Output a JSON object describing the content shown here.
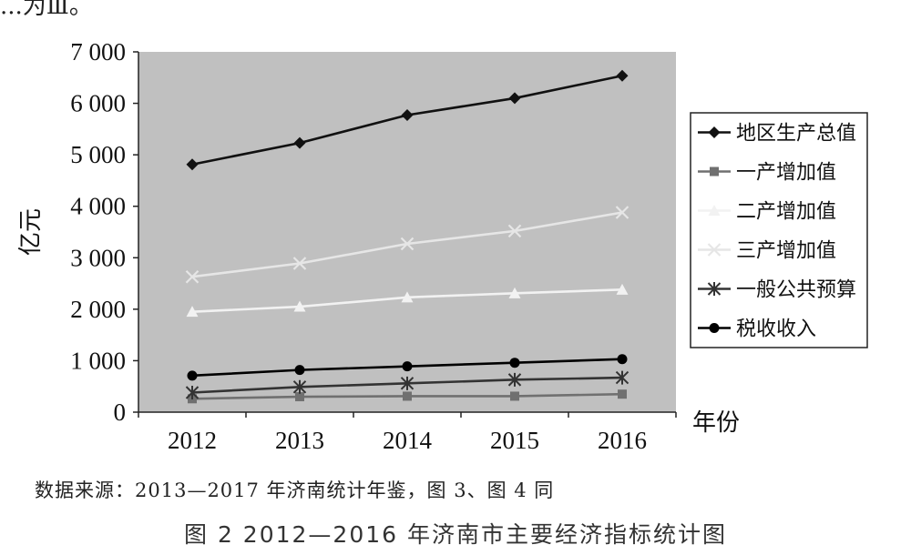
{
  "top_fragment": "...为Ⅲ。",
  "source_note": "数据来源：2013—2017 年济南统计年鉴，图 3、图 4 同",
  "figure_caption": "图 2 2012—2016 年济南市主要经济指标统计图",
  "colors": {
    "plot_bg": "#c0c0c0",
    "gdp": "#111111",
    "primary": "#707070",
    "secondary": "#f2f2f2",
    "tertiary": "#e6e6e6",
    "budget": "#333333",
    "tax": "#000000"
  },
  "chart_data": {
    "type": "line",
    "title": "",
    "xlabel": "年份",
    "ylabel": "亿元",
    "ylim": [
      0,
      7000
    ],
    "grid": false,
    "legend_position": "right",
    "x": [
      "2012",
      "2013",
      "2014",
      "2015",
      "2016"
    ],
    "y_ticks": [
      0,
      1000,
      2000,
      3000,
      4000,
      5000,
      6000,
      7000
    ],
    "y_tick_labels": [
      "0",
      "1 000",
      "2 000",
      "3 000",
      "4 000",
      "5 000",
      "6 000",
      "7 000"
    ],
    "series": [
      {
        "name": "地区生产总值",
        "marker": "diamond",
        "color": "#111111",
        "values": [
          4813,
          5230,
          5771,
          6100,
          6536
        ]
      },
      {
        "name": "一产增加值",
        "marker": "square",
        "color": "#707070",
        "values": [
          260,
          300,
          310,
          310,
          350
        ]
      },
      {
        "name": "二产增加值",
        "marker": "triangle",
        "color": "#f2f2f2",
        "values": [
          1950,
          2050,
          2230,
          2310,
          2380
        ]
      },
      {
        "name": "三产增加值",
        "marker": "x",
        "color": "#e6e6e6",
        "values": [
          2630,
          2890,
          3270,
          3520,
          3880
        ]
      },
      {
        "name": "一般公共预算",
        "marker": "asterisk",
        "color": "#333333",
        "values": [
          380,
          490,
          560,
          630,
          670
        ]
      },
      {
        "name": "税收收入",
        "marker": "circle",
        "color": "#000000",
        "values": [
          710,
          820,
          890,
          960,
          1030
        ]
      }
    ]
  }
}
